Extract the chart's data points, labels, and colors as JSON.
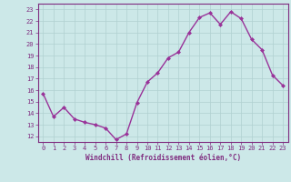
{
  "x": [
    0,
    1,
    2,
    3,
    4,
    5,
    6,
    7,
    8,
    9,
    10,
    11,
    12,
    13,
    14,
    15,
    16,
    17,
    18,
    19,
    20,
    21,
    22,
    23
  ],
  "y": [
    15.7,
    13.7,
    14.5,
    13.5,
    13.2,
    13.0,
    12.7,
    11.7,
    12.2,
    14.9,
    16.7,
    17.5,
    18.8,
    19.3,
    21.0,
    22.3,
    22.7,
    21.7,
    22.8,
    22.2,
    20.4,
    19.5,
    17.3,
    16.4
  ],
  "line_color": "#993399",
  "marker": "D",
  "marker_size": 2,
  "bg_color": "#cce8e8",
  "grid_color": "#b0d0d0",
  "xlabel": "Windchill (Refroidissement éolien,°C)",
  "xlim": [
    -0.5,
    23.5
  ],
  "ylim": [
    11.5,
    23.5
  ],
  "yticks": [
    12,
    13,
    14,
    15,
    16,
    17,
    18,
    19,
    20,
    21,
    22,
    23
  ],
  "xticks": [
    0,
    1,
    2,
    3,
    4,
    5,
    6,
    7,
    8,
    9,
    10,
    11,
    12,
    13,
    14,
    15,
    16,
    17,
    18,
    19,
    20,
    21,
    22,
    23
  ],
  "tick_color": "#7f2b7f",
  "tick_fontsize": 5.0,
  "xlabel_fontsize": 5.5,
  "line_width": 1.0
}
